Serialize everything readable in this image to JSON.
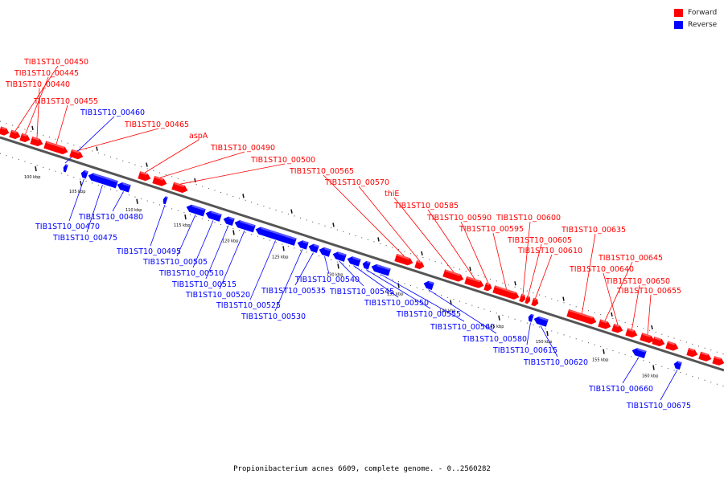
{
  "legend": {
    "forward_label": "Forward",
    "forward_color": "#ff0000",
    "reverse_label": "Reverse",
    "reverse_color": "#0000ff"
  },
  "caption": "Propionibacterium acnes 6609, complete genome. - 0..2560282",
  "ticks": [
    "100 kbp",
    "105 kbp",
    "110 kbp",
    "115 kbp",
    "120 kbp",
    "125 kbp",
    "130 kbp",
    "135 kbp",
    "140 kbp",
    "145 kbp",
    "150 kbp",
    "155 kbp",
    "160 kbp"
  ],
  "genes": {
    "forward": [
      "TIB1ST10_00450",
      "TIB1ST10_00445",
      "TIB1ST10_00440",
      "TIB1ST10_00455",
      "TIB1ST10_00465",
      "aspA",
      "TIB1ST10_00490",
      "TIB1ST10_00500",
      "TIB1ST10_00565",
      "TIB1ST10_00570",
      "thiE",
      "TIB1ST10_00585",
      "TIB1ST10_00590",
      "TIB1ST10_00595",
      "TIB1ST10_00600",
      "TIB1ST10_00605",
      "TIB1ST10_00610",
      "TIB1ST10_00635",
      "TIB1ST10_00645",
      "TIB1ST10_00640",
      "TIB1ST10_00650",
      "TIB1ST10_00655"
    ],
    "reverse": [
      "TIB1ST10_00460",
      "TIB1ST10_00470",
      "TIB1ST10_00475",
      "TIB1ST10_00480",
      "TIB1ST10_00495",
      "TIB1ST10_00505",
      "TIB1ST10_00510",
      "TIB1ST10_00515",
      "TIB1ST10_00520",
      "TIB1ST10_00525",
      "TIB1ST10_00530",
      "TIB1ST10_00535",
      "TIB1ST10_00540",
      "TIB1ST10_00545",
      "TIB1ST10_00550",
      "TIB1ST10_00555",
      "TIB1ST10_00560",
      "TIB1ST10_00580",
      "TIB1ST10_00615",
      "TIB1ST10_00620",
      "TIB1ST10_00660",
      "TIB1ST10_00675"
    ]
  }
}
